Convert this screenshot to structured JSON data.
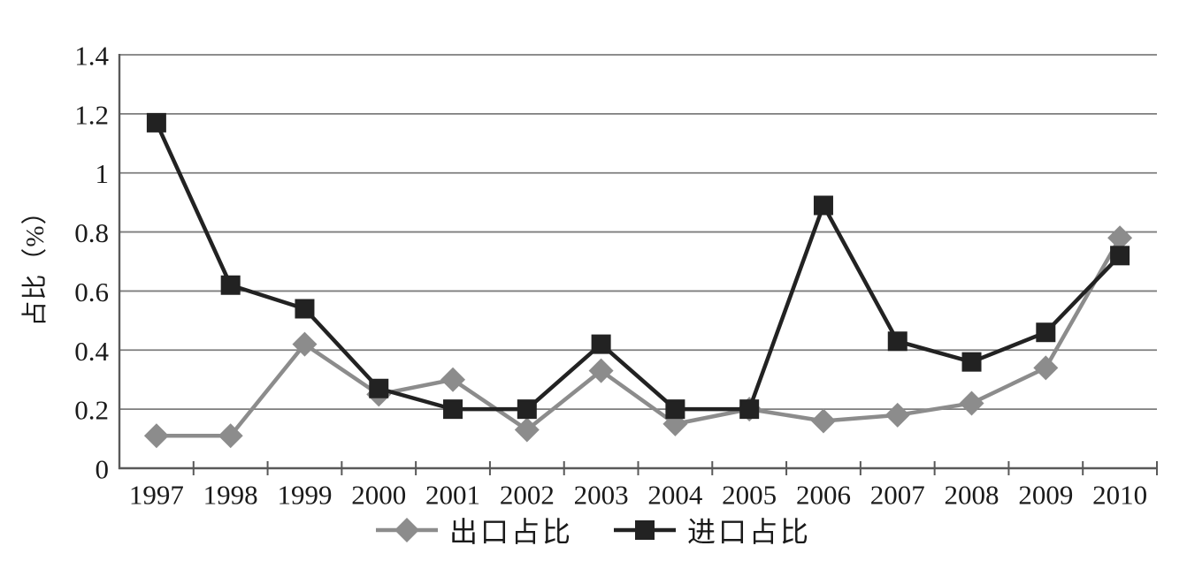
{
  "chart_data": {
    "type": "line",
    "title": "",
    "xlabel": "",
    "ylabel": "占比（%）",
    "ylim": [
      0,
      1.4
    ],
    "ytick_labels": [
      "0",
      "0.2",
      "0.4",
      "0.6",
      "0.8",
      "1",
      "1.2",
      "1.4"
    ],
    "ytick_values": [
      0,
      0.2,
      0.4,
      0.6,
      0.8,
      1,
      1.2,
      1.4
    ],
    "grid": true,
    "legend_position": "bottom",
    "categories": [
      "1997",
      "1998",
      "1999",
      "2000",
      "2001",
      "2002",
      "2003",
      "2004",
      "2005",
      "2006",
      "2007",
      "2008",
      "2009",
      "2010"
    ],
    "series": [
      {
        "name": "出口占比",
        "key": "export",
        "marker": "diamond",
        "color": "#8c8c8c",
        "values": [
          0.11,
          0.11,
          0.42,
          0.25,
          0.3,
          0.13,
          0.33,
          0.15,
          0.2,
          0.16,
          0.18,
          0.22,
          0.34,
          0.78
        ]
      },
      {
        "name": "进口占比",
        "key": "import",
        "marker": "square",
        "color": "#222222",
        "values": [
          1.17,
          0.62,
          0.54,
          0.27,
          0.2,
          0.2,
          0.42,
          0.2,
          0.2,
          0.89,
          0.43,
          0.36,
          0.46,
          0.72
        ]
      }
    ]
  },
  "colors": {
    "background": "#ffffff",
    "gridline": "#7d7d7d",
    "axis": "#595959",
    "text": "#1a1a1a"
  }
}
